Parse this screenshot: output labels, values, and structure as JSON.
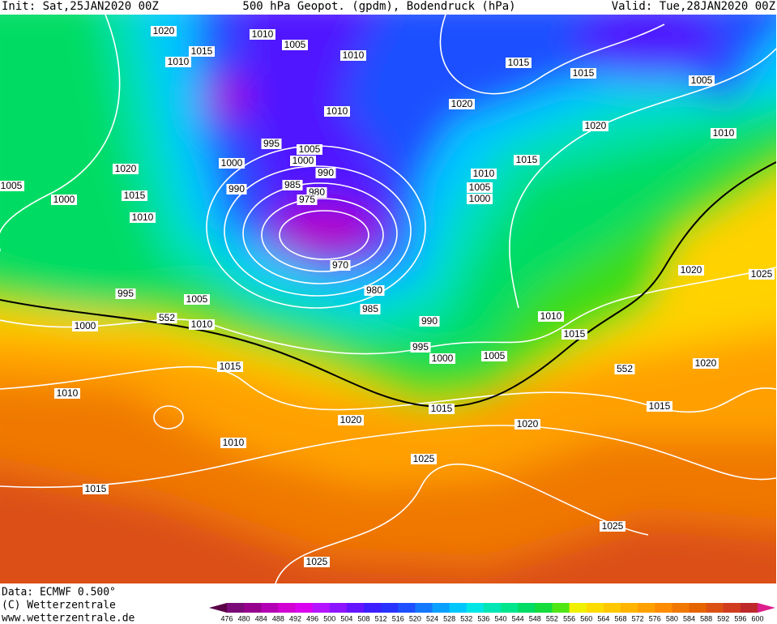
{
  "header": {
    "init": "Init: Sat,25JAN2020 00Z",
    "title": "500 hPa Geopot. (gpdm), Bodendruck (hPa)",
    "valid": "Valid: Tue,28JAN2020 00Z"
  },
  "map": {
    "contour_labels": [
      1020,
      1010,
      1005,
      1015,
      1010,
      1010,
      1015,
      1015,
      1005,
      1020,
      1010,
      1020,
      1010,
      995,
      1005,
      1000,
      1000,
      1015,
      1020,
      990,
      1010,
      985,
      990,
      1005,
      980,
      1005,
      975,
      1000,
      1000,
      1015,
      1010,
      970,
      1020,
      1025,
      995,
      980,
      1005,
      985,
      552,
      1010,
      1000,
      990,
      1010,
      1015,
      995,
      1000,
      1005,
      1020,
      552,
      1015,
      1010,
      1015,
      1015,
      1020,
      1020,
      1010,
      1025,
      1015,
      1025,
      1025
    ]
  },
  "footer": {
    "data": "Data: ECMWF  0.500°",
    "copyright": "(C) Wetterzentrale",
    "url": "www.wetterzentrale.de"
  },
  "legend": {
    "ticks": [
      476,
      480,
      484,
      488,
      492,
      496,
      500,
      504,
      508,
      512,
      516,
      520,
      524,
      528,
      532,
      536,
      540,
      544,
      548,
      552,
      556,
      560,
      564,
      568,
      572,
      576,
      580,
      584,
      588,
      592,
      596,
      600
    ],
    "colors": [
      "#5a0046",
      "#7a0a78",
      "#96008c",
      "#b400b4",
      "#d200d2",
      "#dc00f0",
      "#b414ff",
      "#8c14ff",
      "#6414ff",
      "#3c1eff",
      "#2832ff",
      "#1e50ff",
      "#1478ff",
      "#0aa0ff",
      "#00c8ff",
      "#00e6e6",
      "#00e6b4",
      "#00e68c",
      "#00dc64",
      "#14dc3c",
      "#50e614",
      "#f0f000",
      "#ffdc00",
      "#ffc800",
      "#ffb400",
      "#ffa000",
      "#ff8c00",
      "#f07800",
      "#e66400",
      "#dc5014",
      "#d23c1e",
      "#be2828",
      "#dc1e8c"
    ]
  }
}
